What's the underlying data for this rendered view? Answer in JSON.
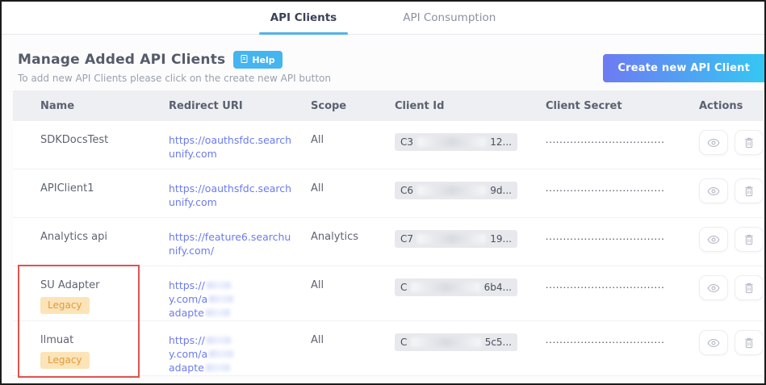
{
  "tabs": [
    {
      "label": "API Clients",
      "active": true
    },
    {
      "label": "API Consumption",
      "active": false
    }
  ],
  "header": {
    "title": "Manage Added API Clients",
    "help_label": "Help",
    "subtitle": "To add new API Clients please click on the create new API button",
    "create_button_label": "Create new API Client"
  },
  "table": {
    "columns": [
      "Name",
      "Redirect URI",
      "Scope",
      "Client Id",
      "Client Secret",
      "Actions"
    ],
    "secret_mask": "••••••••••••••••••••••••••••••••••",
    "rows": [
      {
        "name": "SDKDocsTest",
        "redirect_url": "https://oauthsfdc.searchunify.com",
        "scope": "All",
        "client_id_prefix": "C3",
        "client_id_suffix": "12..."
      },
      {
        "name": "APIClient1",
        "redirect_url": "https://oauthsfdc.searchunify.com",
        "scope": "All",
        "client_id_prefix": "C6",
        "client_id_suffix": "9d..."
      },
      {
        "name": "Analytics api",
        "redirect_url": "https://feature6.searchunify.com/",
        "scope": "Analytics",
        "client_id_prefix": "C7",
        "client_id_suffix": "19..."
      },
      {
        "name": "SU Adapter",
        "badge": "Legacy",
        "redirect_fragments": [
          "https://",
          "y.com/a",
          "adapte"
        ],
        "scope": "All",
        "client_id_prefix": "C",
        "client_id_suffix": "6b4..."
      },
      {
        "name": "llmuat",
        "badge": "Legacy",
        "redirect_fragments": [
          "https://",
          "y.com/a",
          "adapte"
        ],
        "scope": "All",
        "client_id_prefix": "C",
        "client_id_suffix": "5c5..."
      }
    ]
  },
  "colors": {
    "tab_underline": "#55b2e8",
    "help_badge": "#45b5f0",
    "button_gradient_start": "#6e7bf2",
    "button_gradient_end": "#35c7f3",
    "link": "#6b7bee",
    "legacy_badge_bg": "#fce4b8",
    "legacy_badge_text": "#e29a3a",
    "annotation": "#e0524f"
  },
  "annotation": {
    "description": "red highlight box around legacy client names"
  }
}
